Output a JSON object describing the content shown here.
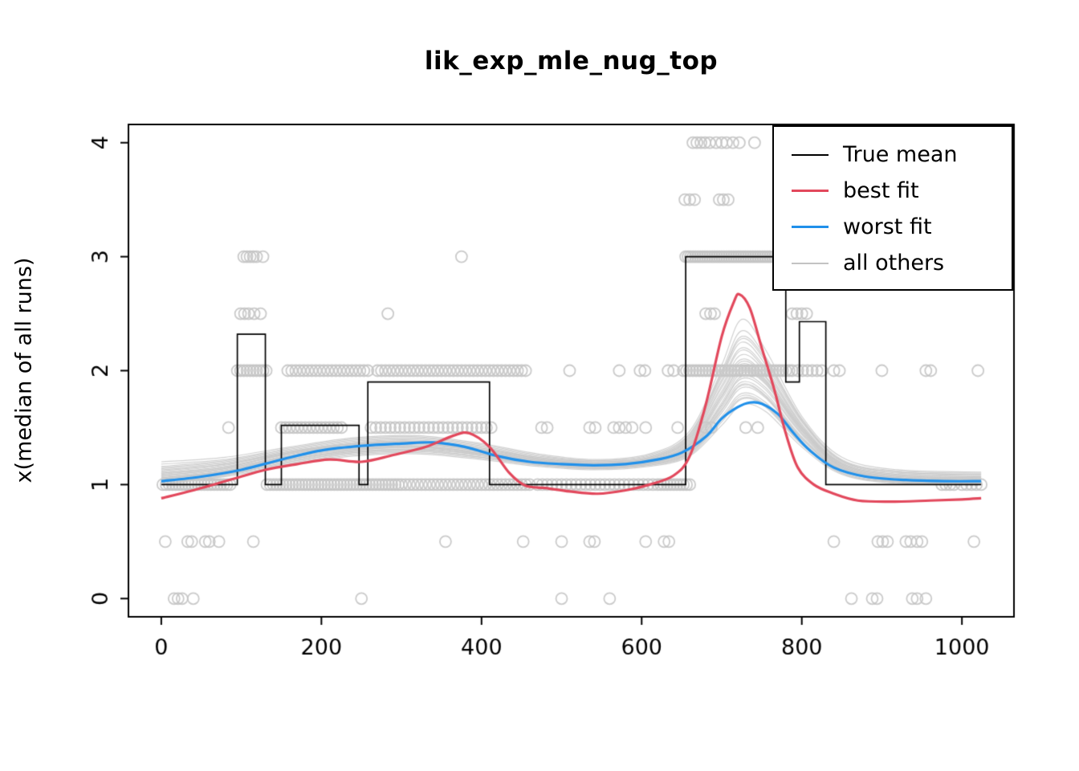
{
  "title": "lik_exp_mle_nug_top",
  "ylabel": "x(median of all runs)",
  "legend": {
    "items": [
      {
        "label": "True mean",
        "color": "#000000"
      },
      {
        "label": "best fit",
        "color": "#e2485c"
      },
      {
        "label": "worst fit",
        "color": "#2090ea"
      },
      {
        "label": "all others",
        "color": "#c3c3c3"
      }
    ]
  },
  "chart_data": {
    "type": "line",
    "title": "lik_exp_mle_nug_top",
    "xlabel": "",
    "ylabel": "x(median of all runs)",
    "xlim": [
      -41,
      1065
    ],
    "ylim": [
      -0.16,
      4.16
    ],
    "x_ticks": [
      0,
      200,
      400,
      600,
      800,
      1000
    ],
    "x_tick_labels": [
      "0",
      "200",
      "400",
      "600",
      "800",
      "1000"
    ],
    "y_ticks": [
      0,
      1,
      2,
      3,
      4
    ],
    "y_tick_labels": [
      "0",
      "1",
      "2",
      "3",
      "4"
    ],
    "grid": false,
    "legend_position": "top-right",
    "colors": {
      "true_mean": "#000000",
      "best_fit": "#e2485c",
      "worst_fit": "#2090ea",
      "others": "#c9c9c9",
      "points": "#c4c4c4"
    },
    "true_mean_step": [
      [
        0,
        1.0
      ],
      [
        95,
        1.0
      ],
      [
        95,
        2.32
      ],
      [
        130,
        2.32
      ],
      [
        130,
        1.0
      ],
      [
        150,
        1.0
      ],
      [
        150,
        1.52
      ],
      [
        247,
        1.52
      ],
      [
        247,
        1.0
      ],
      [
        258,
        1.0
      ],
      [
        258,
        1.9
      ],
      [
        410,
        1.9
      ],
      [
        410,
        1.0
      ],
      [
        655,
        1.0
      ],
      [
        655,
        3.0
      ],
      [
        780,
        3.0
      ],
      [
        780,
        1.9
      ],
      [
        797,
        1.9
      ],
      [
        797,
        2.43
      ],
      [
        830,
        2.43
      ],
      [
        830,
        1.0
      ],
      [
        1024,
        1.0
      ]
    ],
    "best_fit": [
      [
        0,
        0.88
      ],
      [
        40,
        0.95
      ],
      [
        90,
        1.05
      ],
      [
        130,
        1.13
      ],
      [
        170,
        1.18
      ],
      [
        210,
        1.22
      ],
      [
        250,
        1.2
      ],
      [
        290,
        1.26
      ],
      [
        330,
        1.33
      ],
      [
        365,
        1.43
      ],
      [
        385,
        1.45
      ],
      [
        410,
        1.33
      ],
      [
        435,
        1.1
      ],
      [
        455,
        0.99
      ],
      [
        480,
        0.97
      ],
      [
        510,
        0.94
      ],
      [
        545,
        0.92
      ],
      [
        580,
        0.95
      ],
      [
        610,
        1.0
      ],
      [
        640,
        1.08
      ],
      [
        660,
        1.25
      ],
      [
        680,
        1.7
      ],
      [
        700,
        2.3
      ],
      [
        715,
        2.6
      ],
      [
        722,
        2.67
      ],
      [
        735,
        2.55
      ],
      [
        750,
        2.2
      ],
      [
        765,
        1.85
      ],
      [
        780,
        1.45
      ],
      [
        795,
        1.15
      ],
      [
        815,
        1.0
      ],
      [
        840,
        0.92
      ],
      [
        870,
        0.86
      ],
      [
        910,
        0.85
      ],
      [
        960,
        0.86
      ],
      [
        1000,
        0.87
      ],
      [
        1024,
        0.88
      ]
    ],
    "worst_fit": [
      [
        0,
        1.03
      ],
      [
        50,
        1.07
      ],
      [
        100,
        1.13
      ],
      [
        150,
        1.22
      ],
      [
        200,
        1.3
      ],
      [
        250,
        1.34
      ],
      [
        300,
        1.36
      ],
      [
        340,
        1.37
      ],
      [
        380,
        1.33
      ],
      [
        420,
        1.25
      ],
      [
        460,
        1.2
      ],
      [
        500,
        1.18
      ],
      [
        540,
        1.17
      ],
      [
        580,
        1.18
      ],
      [
        620,
        1.22
      ],
      [
        650,
        1.28
      ],
      [
        680,
        1.42
      ],
      [
        700,
        1.58
      ],
      [
        720,
        1.68
      ],
      [
        735,
        1.72
      ],
      [
        750,
        1.71
      ],
      [
        770,
        1.62
      ],
      [
        790,
        1.45
      ],
      [
        810,
        1.3
      ],
      [
        840,
        1.15
      ],
      [
        880,
        1.07
      ],
      [
        930,
        1.04
      ],
      [
        980,
        1.03
      ],
      [
        1024,
        1.03
      ]
    ],
    "other_x": [
      0,
      80,
      160,
      240,
      320,
      400,
      470,
      540,
      610,
      660,
      700,
      725,
      755,
      800,
      850,
      920,
      1024
    ],
    "other_fits": [
      [
        1.05,
        1.12,
        1.25,
        1.32,
        1.34,
        1.28,
        1.2,
        1.17,
        1.2,
        1.32,
        1.7,
        1.95,
        1.85,
        1.45,
        1.15,
        1.05,
        1.04
      ],
      [
        1.1,
        1.15,
        1.28,
        1.36,
        1.38,
        1.3,
        1.22,
        1.18,
        1.22,
        1.38,
        1.85,
        2.1,
        1.95,
        1.5,
        1.18,
        1.08,
        1.06
      ],
      [
        1.0,
        1.08,
        1.2,
        1.28,
        1.3,
        1.25,
        1.18,
        1.15,
        1.18,
        1.28,
        1.6,
        1.8,
        1.72,
        1.38,
        1.12,
        1.03,
        1.02
      ],
      [
        1.15,
        1.2,
        1.3,
        1.38,
        1.4,
        1.33,
        1.24,
        1.2,
        1.24,
        1.42,
        1.95,
        2.25,
        2.05,
        1.55,
        1.2,
        1.1,
        1.08
      ],
      [
        1.03,
        1.1,
        1.22,
        1.3,
        1.33,
        1.27,
        1.19,
        1.16,
        1.19,
        1.3,
        1.68,
        1.9,
        1.8,
        1.42,
        1.14,
        1.04,
        1.03
      ],
      [
        1.08,
        1.14,
        1.26,
        1.34,
        1.36,
        1.29,
        1.21,
        1.17,
        1.21,
        1.35,
        1.78,
        2.02,
        1.9,
        1.48,
        1.16,
        1.06,
        1.05
      ],
      [
        1.12,
        1.18,
        1.28,
        1.35,
        1.37,
        1.31,
        1.23,
        1.19,
        1.23,
        1.4,
        1.9,
        2.18,
        2.0,
        1.52,
        1.19,
        1.09,
        1.07
      ],
      [
        1.02,
        1.08,
        1.18,
        1.26,
        1.28,
        1.23,
        1.17,
        1.14,
        1.17,
        1.26,
        1.55,
        1.75,
        1.68,
        1.35,
        1.1,
        1.02,
        1.01
      ],
      [
        1.06,
        1.12,
        1.24,
        1.31,
        1.33,
        1.27,
        1.2,
        1.16,
        1.2,
        1.33,
        1.72,
        1.98,
        1.88,
        1.46,
        1.15,
        1.05,
        1.04
      ],
      [
        1.18,
        1.22,
        1.32,
        1.4,
        1.42,
        1.35,
        1.26,
        1.21,
        1.26,
        1.45,
        2.0,
        2.35,
        2.12,
        1.58,
        1.22,
        1.12,
        1.1
      ],
      [
        1.04,
        1.1,
        1.21,
        1.29,
        1.31,
        1.26,
        1.18,
        1.15,
        1.18,
        1.29,
        1.63,
        1.85,
        1.76,
        1.4,
        1.13,
        1.03,
        1.02
      ],
      [
        1.09,
        1.15,
        1.27,
        1.34,
        1.36,
        1.3,
        1.22,
        1.18,
        1.22,
        1.36,
        1.8,
        2.06,
        1.92,
        1.49,
        1.17,
        1.07,
        1.05
      ],
      [
        1.14,
        1.19,
        1.29,
        1.37,
        1.39,
        1.32,
        1.24,
        1.2,
        1.24,
        1.43,
        1.97,
        2.28,
        2.08,
        1.56,
        1.21,
        1.11,
        1.09
      ],
      [
        1.01,
        1.07,
        1.17,
        1.25,
        1.27,
        1.22,
        1.16,
        1.13,
        1.16,
        1.25,
        1.52,
        1.7,
        1.64,
        1.33,
        1.09,
        1.01,
        1.0
      ],
      [
        1.07,
        1.13,
        1.25,
        1.32,
        1.34,
        1.28,
        1.21,
        1.17,
        1.21,
        1.34,
        1.75,
        2.0,
        1.89,
        1.47,
        1.16,
        1.06,
        1.04
      ],
      [
        1.2,
        1.24,
        1.33,
        1.41,
        1.43,
        1.36,
        1.27,
        1.22,
        1.27,
        1.47,
        2.05,
        2.45,
        2.18,
        1.6,
        1.24,
        1.13,
        1.11
      ],
      [
        1.05,
        1.11,
        1.22,
        1.3,
        1.32,
        1.26,
        1.19,
        1.15,
        1.19,
        1.31,
        1.66,
        1.88,
        1.78,
        1.41,
        1.13,
        1.04,
        1.03
      ],
      [
        1.1,
        1.16,
        1.27,
        1.35,
        1.37,
        1.3,
        1.22,
        1.18,
        1.22,
        1.37,
        1.82,
        2.08,
        1.94,
        1.5,
        1.17,
        1.07,
        1.06
      ],
      [
        1.03,
        1.09,
        1.2,
        1.28,
        1.3,
        1.24,
        1.18,
        1.14,
        1.18,
        1.28,
        1.58,
        1.78,
        1.7,
        1.37,
        1.11,
        1.02,
        1.01
      ],
      [
        1.16,
        1.21,
        1.31,
        1.39,
        1.41,
        1.34,
        1.25,
        1.21,
        1.25,
        1.44,
        1.98,
        2.3,
        2.1,
        1.57,
        1.21,
        1.11,
        1.09
      ],
      [
        1.06,
        1.12,
        1.23,
        1.31,
        1.33,
        1.27,
        1.2,
        1.16,
        1.2,
        1.32,
        1.7,
        1.93,
        1.83,
        1.44,
        1.14,
        1.05,
        1.03
      ],
      [
        1.11,
        1.17,
        1.28,
        1.36,
        1.38,
        1.31,
        1.23,
        1.19,
        1.23,
        1.39,
        1.87,
        2.14,
        1.98,
        1.51,
        1.18,
        1.08,
        1.06
      ],
      [
        1.02,
        1.09,
        1.19,
        1.27,
        1.29,
        1.24,
        1.17,
        1.14,
        1.17,
        1.27,
        1.57,
        1.76,
        1.69,
        1.36,
        1.1,
        1.02,
        1.01
      ],
      [
        1.08,
        1.14,
        1.25,
        1.33,
        1.35,
        1.29,
        1.21,
        1.17,
        1.21,
        1.35,
        1.77,
        2.03,
        1.91,
        1.48,
        1.16,
        1.06,
        1.05
      ],
      [
        1.13,
        1.18,
        1.29,
        1.36,
        1.38,
        1.32,
        1.23,
        1.19,
        1.23,
        1.41,
        1.92,
        2.2,
        2.02,
        1.53,
        1.19,
        1.09,
        1.07
      ],
      [
        1.05,
        1.11,
        1.22,
        1.29,
        1.31,
        1.26,
        1.19,
        1.15,
        1.19,
        1.3,
        1.65,
        1.87,
        1.77,
        1.4,
        1.13,
        1.04,
        1.02
      ]
    ],
    "scatter": {
      "4": [
        664,
        669,
        674,
        679,
        685,
        693,
        700,
        706,
        714,
        722,
        741
      ],
      "3.5": [
        654,
        660,
        666,
        697,
        702,
        708
      ],
      "3": [
        103,
        107,
        111,
        115,
        119,
        127,
        375,
        655,
        658,
        661,
        664,
        667,
        670,
        673,
        676,
        679,
        682,
        685,
        688,
        691,
        694,
        697,
        700,
        703,
        706,
        709,
        712,
        715,
        718,
        721,
        724,
        727,
        730,
        733,
        736,
        739,
        742,
        745,
        748,
        751,
        754,
        757,
        760,
        763,
        766,
        769,
        772,
        775,
        778
      ],
      "2.5": [
        99,
        104,
        109,
        116,
        124,
        283,
        680,
        686,
        691,
        788,
        794,
        800,
        806
      ],
      "2": [
        95,
        99,
        103,
        107,
        111,
        115,
        119,
        123,
        127,
        131,
        158,
        163,
        168,
        173,
        178,
        183,
        188,
        193,
        198,
        203,
        208,
        213,
        218,
        223,
        228,
        233,
        238,
        243,
        248,
        253,
        258,
        270,
        275,
        280,
        285,
        290,
        295,
        300,
        305,
        310,
        315,
        320,
        325,
        330,
        335,
        340,
        345,
        350,
        355,
        360,
        365,
        370,
        375,
        380,
        385,
        390,
        395,
        400,
        405,
        410,
        415,
        420,
        425,
        430,
        435,
        440,
        445,
        450,
        455,
        510,
        572,
        598,
        604,
        633,
        640,
        652,
        656,
        660,
        664,
        668,
        672,
        676,
        680,
        684,
        688,
        692,
        696,
        700,
        704,
        708,
        712,
        716,
        720,
        724,
        728,
        732,
        736,
        740,
        744,
        748,
        752,
        756,
        760,
        764,
        768,
        772,
        776,
        780,
        784,
        788,
        795,
        801,
        807,
        813,
        819,
        825,
        840,
        847,
        900,
        955,
        961,
        1020
      ],
      "1.5": [
        84,
        150,
        155,
        160,
        165,
        170,
        175,
        180,
        185,
        190,
        195,
        200,
        205,
        210,
        215,
        220,
        225,
        262,
        268,
        274,
        280,
        286,
        292,
        298,
        304,
        310,
        316,
        322,
        328,
        334,
        340,
        346,
        352,
        358,
        364,
        370,
        376,
        382,
        388,
        394,
        400,
        406,
        412,
        475,
        482,
        535,
        542,
        565,
        572,
        580,
        588,
        605,
        645,
        680,
        687,
        730,
        745
      ],
      "1": [
        2,
        6,
        10,
        14,
        18,
        22,
        26,
        30,
        34,
        38,
        42,
        46,
        50,
        54,
        58,
        62,
        66,
        70,
        74,
        78,
        82,
        86,
        132,
        136,
        140,
        144,
        148,
        152,
        156,
        160,
        164,
        168,
        172,
        176,
        180,
        184,
        188,
        192,
        196,
        200,
        204,
        208,
        212,
        216,
        220,
        224,
        228,
        232,
        236,
        240,
        244,
        248,
        252,
        256,
        260,
        264,
        268,
        272,
        276,
        280,
        284,
        288,
        292,
        296,
        300,
        305,
        310,
        315,
        320,
        325,
        330,
        335,
        340,
        345,
        350,
        355,
        360,
        365,
        370,
        375,
        380,
        385,
        390,
        395,
        400,
        405,
        410,
        415,
        420,
        425,
        430,
        435,
        440,
        445,
        450,
        455,
        460,
        470,
        476,
        482,
        488,
        494,
        500,
        506,
        512,
        518,
        524,
        530,
        536,
        542,
        548,
        554,
        560,
        566,
        572,
        578,
        584,
        590,
        596,
        602,
        608,
        614,
        620,
        624,
        628,
        632,
        636,
        640,
        644,
        648,
        652,
        656,
        660,
        975,
        980,
        985,
        990,
        1000,
        1006,
        1012,
        1018,
        1024
      ],
      "0.5": [
        5,
        33,
        38,
        55,
        60,
        72,
        115,
        355,
        452,
        500,
        535,
        541,
        605,
        628,
        634,
        840,
        895,
        901,
        907,
        930,
        936,
        944,
        950,
        1015
      ],
      "0": [
        16,
        21,
        26,
        40,
        250,
        500,
        560,
        862,
        888,
        894,
        938,
        944,
        955
      ]
    }
  }
}
